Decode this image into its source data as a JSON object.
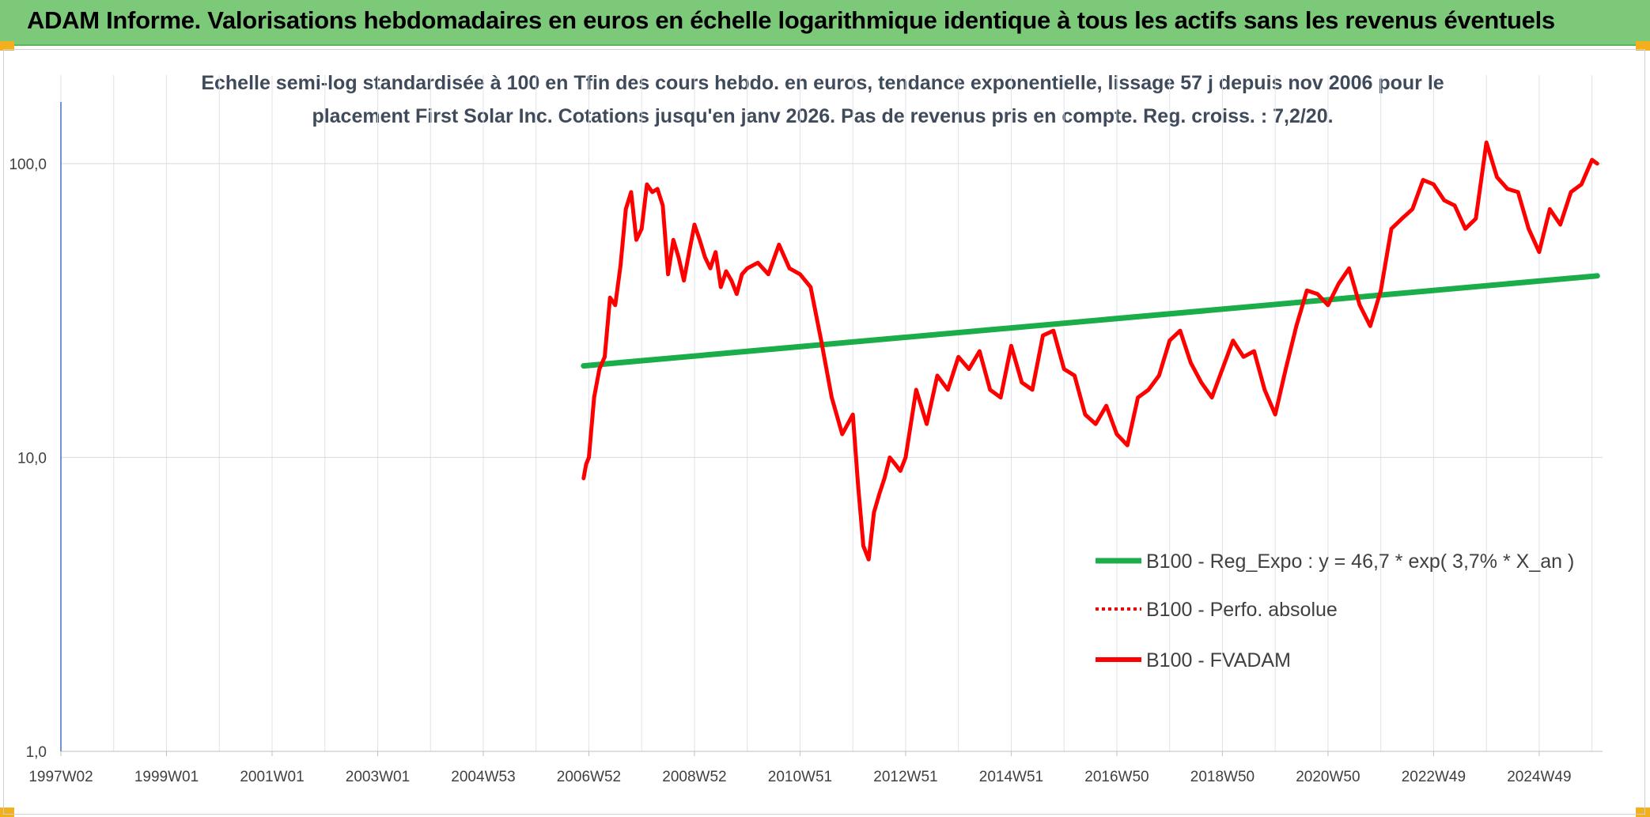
{
  "header": {
    "title": "ADAM Informe. Valorisations hebdomadaires en euros en échelle logarithmique identique à tous les actifs sans les revenus éventuels"
  },
  "colors": {
    "header_bg": "#7dc97a",
    "corner_accent": "#f2b01e",
    "series_red": "#ff0000",
    "series_green": "#1aad4a"
  },
  "chart_data": {
    "type": "line",
    "subtitle_line1": "Echelle semi-log standardisée à 100 en Tfin des cours hebdo. en euros, tendance exponentielle, lissage 57 j depuis nov 2006 pour le",
    "subtitle_line2": "placement First Solar Inc. Cotations jusqu'en janv 2026. Pas de revenus pris en compte. Reg. croiss. : 7,2/20.",
    "y_scale": "log",
    "ylim": [
      1,
      200
    ],
    "y_ticks": [
      {
        "value": 1,
        "label": "1,0"
      },
      {
        "value": 10,
        "label": "10,0"
      },
      {
        "value": 100,
        "label": "100,0"
      }
    ],
    "xlim": [
      1997.0,
      2026.2
    ],
    "x_ticks": [
      {
        "value": 1997.0,
        "label": "1997W02"
      },
      {
        "value": 1999.0,
        "label": "1999W01"
      },
      {
        "value": 2001.0,
        "label": "2001W01"
      },
      {
        "value": 2003.0,
        "label": "2003W01"
      },
      {
        "value": 2005.0,
        "label": "2004W53"
      },
      {
        "value": 2007.0,
        "label": "2006W52"
      },
      {
        "value": 2009.0,
        "label": "2008W52"
      },
      {
        "value": 2011.0,
        "label": "2010W51"
      },
      {
        "value": 2013.0,
        "label": "2012W51"
      },
      {
        "value": 2015.0,
        "label": "2014W51"
      },
      {
        "value": 2017.0,
        "label": "2016W50"
      },
      {
        "value": 2019.0,
        "label": "2018W50"
      },
      {
        "value": 2021.0,
        "label": "2020W50"
      },
      {
        "value": 2023.0,
        "label": "2022W49"
      },
      {
        "value": 2025.0,
        "label": "2024W49"
      }
    ],
    "legend": {
      "placement": "bottom-right",
      "entries": [
        {
          "key": "reg",
          "label": "B100 - Reg_Expo : y = 46,7 * exp( 3,7% *  X_an )",
          "style": "solid-green"
        },
        {
          "key": "perf",
          "label": "B100 - Perfo. absolue",
          "style": "dotted-red"
        },
        {
          "key": "fvadam",
          "label": "B100 - FVADAM",
          "style": "solid-red"
        }
      ]
    },
    "series": [
      {
        "name": "B100 - Reg_Expo : y = 46,7 * exp( 3,7% *  X_an )",
        "color": "#1aad4a",
        "x": [
          2006.9,
          2026.1
        ],
        "y": [
          20.5,
          41.5
        ]
      },
      {
        "name": "B100 - FVADAM",
        "color": "#ff0000",
        "x": [
          2006.9,
          2006.95,
          2007.0,
          2007.1,
          2007.2,
          2007.3,
          2007.4,
          2007.5,
          2007.6,
          2007.7,
          2007.8,
          2007.9,
          2008.0,
          2008.1,
          2008.2,
          2008.3,
          2008.4,
          2008.5,
          2008.6,
          2008.7,
          2008.8,
          2008.9,
          2009.0,
          2009.1,
          2009.2,
          2009.3,
          2009.4,
          2009.5,
          2009.6,
          2009.7,
          2009.8,
          2009.9,
          2010.0,
          2010.2,
          2010.4,
          2010.6,
          2010.8,
          2011.0,
          2011.2,
          2011.4,
          2011.6,
          2011.8,
          2012.0,
          2012.1,
          2012.2,
          2012.3,
          2012.4,
          2012.5,
          2012.6,
          2012.7,
          2012.8,
          2012.9,
          2013.0,
          2013.2,
          2013.4,
          2013.6,
          2013.8,
          2014.0,
          2014.2,
          2014.4,
          2014.6,
          2014.8,
          2015.0,
          2015.2,
          2015.4,
          2015.6,
          2015.8,
          2016.0,
          2016.2,
          2016.4,
          2016.6,
          2016.8,
          2017.0,
          2017.2,
          2017.4,
          2017.6,
          2017.8,
          2018.0,
          2018.2,
          2018.4,
          2018.6,
          2018.8,
          2019.0,
          2019.2,
          2019.4,
          2019.6,
          2019.8,
          2020.0,
          2020.2,
          2020.4,
          2020.6,
          2020.8,
          2021.0,
          2021.2,
          2021.4,
          2021.6,
          2021.8,
          2022.0,
          2022.2,
          2022.4,
          2022.6,
          2022.8,
          2023.0,
          2023.2,
          2023.4,
          2023.6,
          2023.8,
          2024.0,
          2024.2,
          2024.4,
          2024.6,
          2024.8,
          2025.0,
          2025.2,
          2025.4,
          2025.6,
          2025.8,
          2026.0,
          2026.1
        ],
        "y": [
          8.5,
          9.5,
          10.0,
          16.0,
          20.0,
          22.0,
          35.0,
          33.0,
          45.0,
          70.0,
          80.0,
          55.0,
          60.0,
          85.0,
          80.0,
          82.0,
          72.0,
          42.0,
          55.0,
          48.0,
          40.0,
          50.0,
          62.0,
          55.0,
          48.0,
          44.0,
          50.0,
          38.0,
          43.0,
          40.0,
          36.0,
          42.0,
          44.0,
          46.0,
          42.0,
          53.0,
          44.0,
          42.0,
          38.0,
          25.0,
          16.0,
          12.0,
          14.0,
          8.0,
          5.0,
          4.5,
          6.5,
          7.5,
          8.5,
          10.0,
          9.5,
          9.0,
          10.0,
          17.0,
          13.0,
          19.0,
          17.0,
          22.0,
          20.0,
          23.0,
          17.0,
          16.0,
          24.0,
          18.0,
          17.0,
          26.0,
          27.0,
          20.0,
          19.0,
          14.0,
          13.0,
          15.0,
          12.0,
          11.0,
          16.0,
          17.0,
          19.0,
          25.0,
          27.0,
          21.0,
          18.0,
          16.0,
          20.0,
          25.0,
          22.0,
          23.0,
          17.0,
          14.0,
          20.0,
          28.0,
          37.0,
          36.0,
          33.0,
          39.0,
          44.0,
          33.0,
          28.0,
          37.0,
          60.0,
          65.0,
          70.0,
          88.0,
          85.0,
          75.0,
          72.0,
          60.0,
          65.0,
          118.0,
          90.0,
          82.0,
          80.0,
          60.0,
          50.0,
          70.0,
          62.0,
          80.0,
          85.0,
          103.0,
          100.0
        ]
      }
    ]
  }
}
